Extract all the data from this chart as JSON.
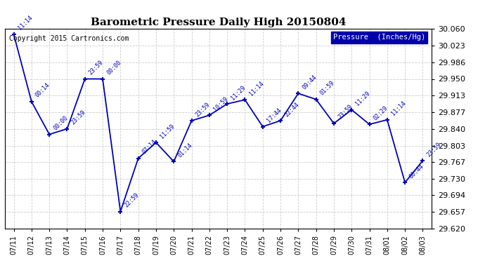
{
  "title": "Barometric Pressure Daily High 20150804",
  "copyright": "Copyright 2015 Cartronics.com",
  "legend_label": "Pressure  (Inches/Hg)",
  "x_labels": [
    "07/11",
    "07/12",
    "07/13",
    "07/14",
    "07/15",
    "07/16",
    "07/17",
    "07/18",
    "07/19",
    "07/20",
    "07/21",
    "07/22",
    "07/23",
    "07/24",
    "07/25",
    "07/26",
    "07/27",
    "07/28",
    "07/29",
    "07/30",
    "07/31",
    "08/01",
    "08/02",
    "08/03"
  ],
  "x_indices": [
    0,
    1,
    2,
    3,
    4,
    5,
    6,
    7,
    8,
    9,
    10,
    11,
    12,
    13,
    14,
    15,
    16,
    17,
    18,
    19,
    20,
    21,
    22,
    23
  ],
  "y_values": [
    30.048,
    29.9,
    29.828,
    29.84,
    29.95,
    29.95,
    29.658,
    29.775,
    29.81,
    29.768,
    29.858,
    29.87,
    29.895,
    29.904,
    29.845,
    29.858,
    29.918,
    29.905,
    29.852,
    29.882,
    29.85,
    29.86,
    29.722,
    29.77
  ],
  "time_labels": [
    "11:14",
    "00:14",
    "00:00",
    "23:59",
    "23:59",
    "00:00",
    "22:59",
    "07:14",
    "11:59",
    "01:14",
    "23:59",
    "10:59",
    "11:29",
    "11:14",
    "17:44",
    "22:44",
    "09:44",
    "01:59",
    "23:59",
    "11:29",
    "02:29",
    "11:14",
    "00:44",
    "23:59"
  ],
  "line_color": "#0000BB",
  "grid_color": "#CCCCCC",
  "background_color": "#FFFFFF",
  "ylim": [
    29.62,
    30.06
  ],
  "yticks": [
    29.62,
    29.657,
    29.694,
    29.73,
    29.767,
    29.803,
    29.84,
    29.877,
    29.913,
    29.95,
    29.986,
    30.023,
    30.06
  ],
  "legend_bg": "#0000AA",
  "legend_text": "#FFFFFF"
}
